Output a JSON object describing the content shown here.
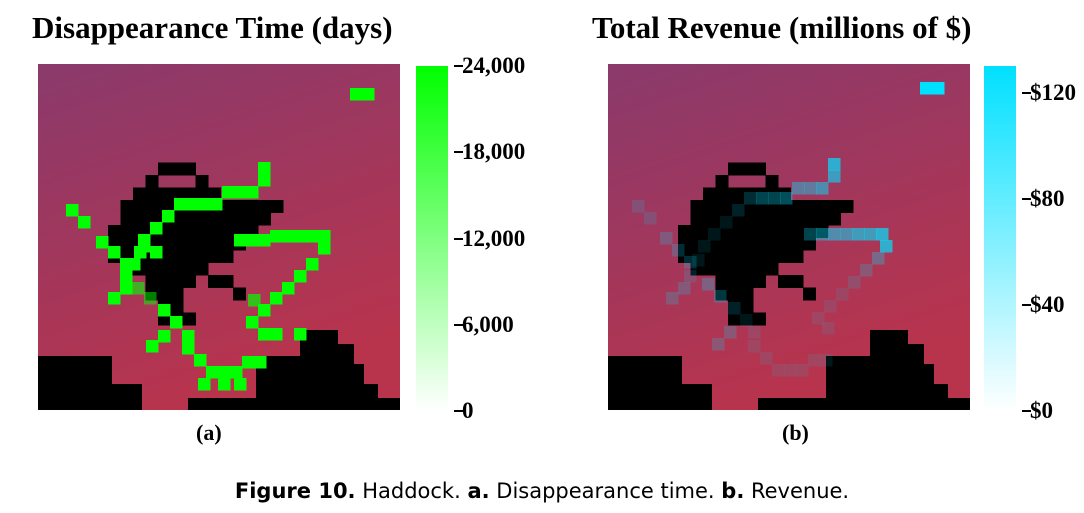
{
  "chart_data": [
    {
      "type": "heatmap",
      "title": "Disappearance Time (days)",
      "panel_label": "(a)",
      "colorbar": {
        "range": [
          0,
          24000
        ],
        "ticks": [
          "24,000",
          "18,000",
          "12,000",
          "6,000",
          "0"
        ],
        "tick_values": [
          24000,
          18000,
          12000,
          6000,
          0
        ],
        "color_min": "#ffffff",
        "color_max": "#00ff00"
      },
      "colors": {
        "background_top": "#8a3a6c",
        "background_bottom": "#b8344d",
        "land": "#000000",
        "highlight": "#00ff00"
      }
    },
    {
      "type": "heatmap",
      "title": "Total Revenue (millions of $)",
      "panel_label": "(b)",
      "colorbar": {
        "range": [
          0,
          130
        ],
        "ticks": [
          "$120",
          "$80",
          "$40",
          "$0"
        ],
        "tick_values": [
          120,
          80,
          40,
          0
        ],
        "color_min": "#ffffff",
        "color_max": "#00e0ff"
      },
      "colors": {
        "background_top": "#8a3a6c",
        "background_bottom": "#b8344d",
        "land": "#000000",
        "highlight": "#00e0ff"
      }
    }
  ],
  "caption": {
    "figure": "Figure 10.",
    "text1": " Haddock. ",
    "a": "a.",
    "text2": " Disappearance time. ",
    "b": "b.",
    "text3": " Revenue."
  }
}
